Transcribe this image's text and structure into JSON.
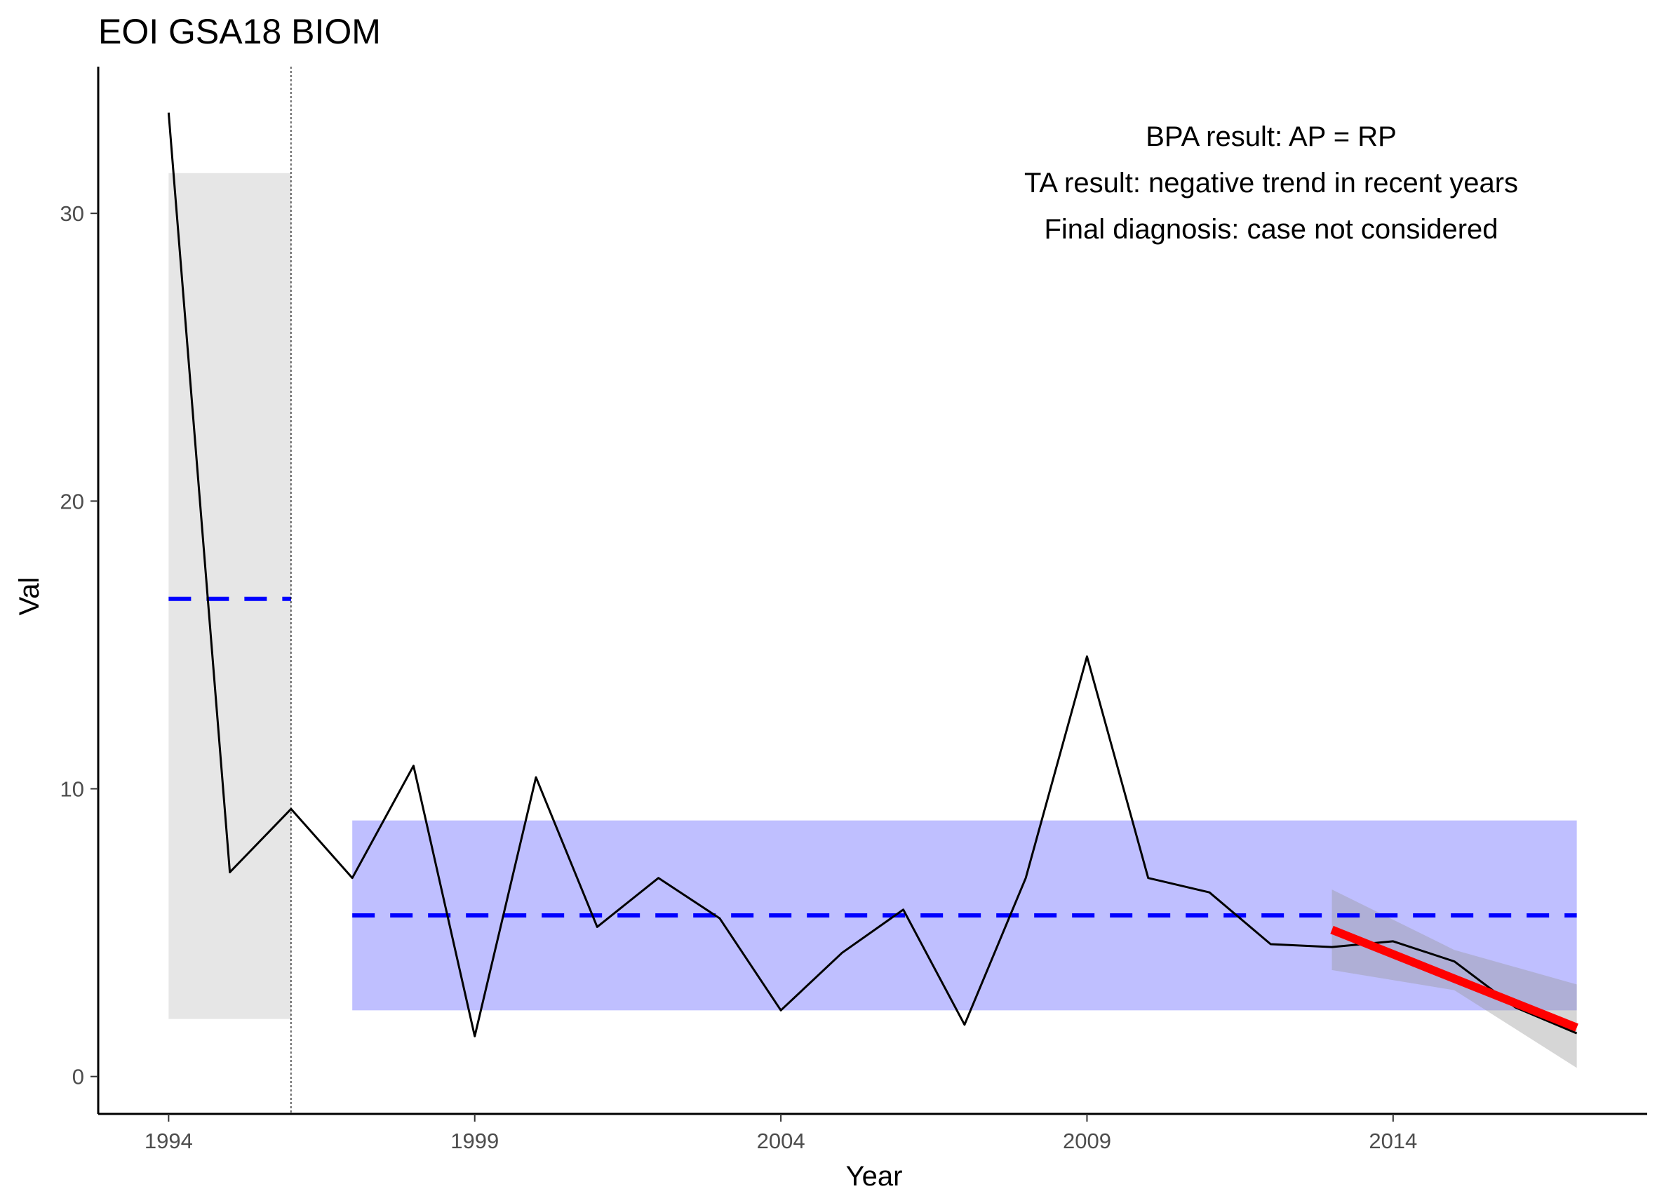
{
  "chart_data": {
    "type": "line",
    "title": "EOI GSA18 BIOM",
    "xlabel": "Year",
    "ylabel": "Val",
    "xlim": [
      1992.85,
      2018.15
    ],
    "ylim": [
      -1.3,
      35.1
    ],
    "x_ticks": [
      1994,
      1999,
      2004,
      2009,
      2014
    ],
    "y_ticks": [
      0,
      10,
      20,
      30
    ],
    "grid": false,
    "legend": "none",
    "series": [
      {
        "x": [
          1994,
          1995,
          1996,
          1997,
          1998,
          1999,
          2000,
          2001,
          2002,
          2003,
          2004,
          2005,
          2006,
          2007,
          2008,
          2009,
          2010,
          2011,
          2012,
          2013,
          2014,
          2015,
          2016,
          2017
        ],
        "values": [
          33.5,
          7.1,
          9.3,
          6.9,
          10.8,
          1.4,
          10.4,
          5.2,
          6.9,
          5.5,
          2.3,
          4.3,
          5.8,
          1.8,
          6.9,
          14.6,
          6.9,
          6.4,
          4.6,
          4.5,
          4.7,
          4.0,
          2.4,
          1.5
        ],
        "color": "#000000"
      }
    ],
    "change_point_x": 1996,
    "segments": [
      {
        "x_start": 1994,
        "x_end": 1996,
        "mean": 16.6,
        "band": [
          2.0,
          31.4
        ],
        "band_color": "#e6e6e6"
      },
      {
        "x_start": 1997,
        "x_end": 2017,
        "mean": 5.6,
        "band": [
          2.3,
          8.9
        ],
        "band_color": "#bfbfff"
      }
    ],
    "mean_line_color": "#0000ff",
    "trend": {
      "x_start": 2013,
      "x_end": 2017,
      "y_start": 5.1,
      "y_end": 1.7,
      "color": "#ff0000",
      "ci_upper": [
        6.5,
        4.4,
        3.2
      ],
      "ci_lower": [
        3.7,
        3.0,
        0.3
      ],
      "ci_x": [
        2013,
        2015,
        2017
      ]
    },
    "annotations": [
      "BPA result: AP = RP",
      "TA result: negative trend in recent years",
      "Final diagnosis: case not considered"
    ]
  }
}
